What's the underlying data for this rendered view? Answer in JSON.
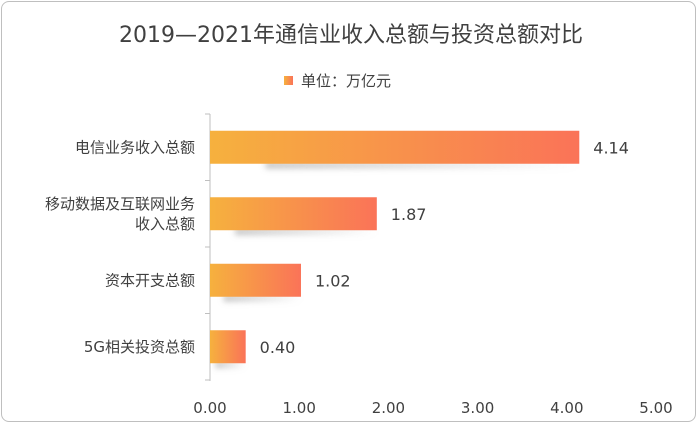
{
  "chart_data": {
    "type": "bar",
    "orientation": "horizontal",
    "title": "2019—2021年通信业收入总额与投资总额对比",
    "legend": {
      "label": "单位：万亿元",
      "position": "top"
    },
    "categories": [
      "电信业务收入总额",
      "移动数据及互联网业务收入总额",
      "资本开支总额",
      "5G相关投资总额"
    ],
    "category_lines": [
      [
        "电信业务收入总额"
      ],
      [
        "移动数据及互联网业务",
        "收入总额"
      ],
      [
        "资本开支总额"
      ],
      [
        "5G相关投资总额"
      ]
    ],
    "series": [
      {
        "name": "单位：万亿元",
        "values": [
          4.14,
          1.87,
          1.02,
          0.4
        ]
      }
    ],
    "value_labels": [
      "4.14",
      "1.87",
      "1.02",
      "0.40"
    ],
    "xlim": [
      0,
      5
    ],
    "xticks": [
      "0.00",
      "1.00",
      "2.00",
      "3.00",
      "4.00",
      "5.00"
    ],
    "grid": false,
    "colors": {
      "gradient_start": "#F6B13E",
      "gradient_end": "#FA7358"
    }
  }
}
